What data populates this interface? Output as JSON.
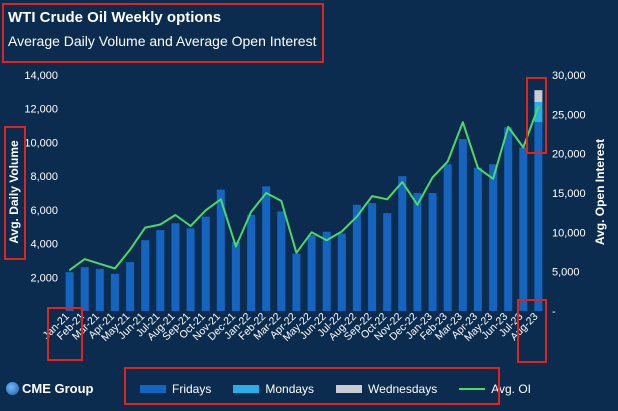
{
  "header": {
    "title": "WTI Crude Oil Weekly options",
    "subtitle": "Average Daily Volume and Average Open Interest"
  },
  "footer": {
    "logo_text": "CME Group"
  },
  "colors": {
    "background": "#0b2c4f",
    "fridays": "#1565c0",
    "mondays": "#29aee6",
    "wednesdays": "#c9ccd2",
    "avg_oi": "#4cd964",
    "highlight": "#e0241c",
    "text": "#ffffff"
  },
  "chart_data": {
    "type": "bar",
    "title": "WTI Crude Oil Weekly options",
    "subtitle": "Average Daily Volume and Average Open Interest",
    "ylabel": "Avg. Daily Volume",
    "y2label": "Avg. Open Interest",
    "ylim": [
      0,
      14000
    ],
    "y2lim": [
      0,
      30000
    ],
    "yticks": [
      "2,000",
      "4,000",
      "6,000",
      "8,000",
      "10,000",
      "12,000",
      "14,000"
    ],
    "y2ticks": [
      "-",
      "5,000",
      "10,000",
      "15,000",
      "20,000",
      "25,000",
      "30,000"
    ],
    "grid": false,
    "legend_position": "bottom",
    "categories": [
      "Jan-21",
      "Feb-21",
      "Mar-21",
      "Apr-21",
      "May-21",
      "Jun-21",
      "Jul-21",
      "Aug-21",
      "Sep-21",
      "Oct-21",
      "Nov-21",
      "Dec-21",
      "Jan-22",
      "Feb-22",
      "Mar-22",
      "Apr-22",
      "May-22",
      "Jun-22",
      "Jul-22",
      "Aug-22",
      "Sep-22",
      "Oct-22",
      "Nov-22",
      "Dec-22",
      "Jan-23",
      "Feb-23",
      "Mar-23",
      "Apr-23",
      "May-23",
      "Jun-23",
      "Jul-23",
      "Aug-23"
    ],
    "series": [
      {
        "name": "Fridays",
        "kind": "bar",
        "axis": "left",
        "values": [
          2300,
          2600,
          2500,
          2200,
          2900,
          4200,
          4800,
          5200,
          4900,
          5600,
          7200,
          4100,
          5700,
          7400,
          5900,
          3400,
          4500,
          4700,
          4600,
          6300,
          6400,
          5800,
          8000,
          7000,
          7000,
          8700,
          10200,
          8500,
          8700,
          10900,
          9700,
          11200
        ]
      },
      {
        "name": "Mondays",
        "kind": "bar",
        "axis": "left",
        "values": [
          0,
          0,
          0,
          0,
          0,
          0,
          0,
          0,
          0,
          0,
          0,
          0,
          0,
          0,
          0,
          0,
          0,
          0,
          0,
          0,
          0,
          0,
          0,
          0,
          0,
          0,
          0,
          0,
          0,
          0,
          0,
          1200
        ]
      },
      {
        "name": "Wednesdays",
        "kind": "bar",
        "axis": "left",
        "values": [
          0,
          0,
          0,
          0,
          0,
          0,
          0,
          0,
          0,
          0,
          0,
          0,
          0,
          0,
          0,
          0,
          0,
          0,
          0,
          0,
          0,
          0,
          0,
          0,
          0,
          0,
          0,
          0,
          0,
          0,
          0,
          700
        ]
      },
      {
        "name": "Avg. OI",
        "kind": "line",
        "axis": "right",
        "values": [
          5200,
          6600,
          6000,
          5400,
          7800,
          10600,
          11000,
          12200,
          10800,
          12800,
          14200,
          8200,
          12600,
          15000,
          14000,
          7400,
          10000,
          9000,
          10100,
          12000,
          14600,
          14200,
          16400,
          13500,
          17000,
          19000,
          24000,
          18200,
          16800,
          23400,
          20800,
          26000
        ]
      }
    ]
  },
  "legend": {
    "items": [
      "Fridays",
      "Mondays",
      "Wednesdays",
      "Avg. OI"
    ]
  }
}
